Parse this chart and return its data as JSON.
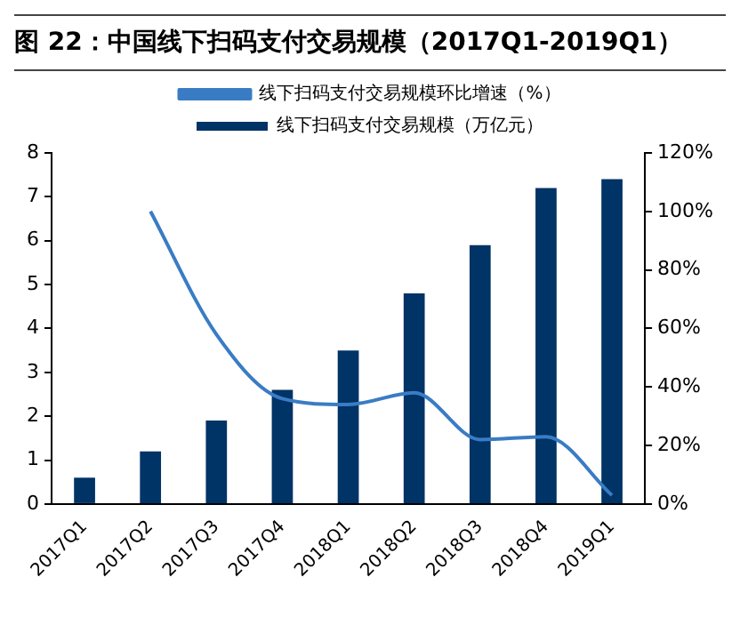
{
  "chart_data": {
    "type": "bar",
    "title": "图 22：中国线下扫码支付交易规模（2017Q1-2019Q1）",
    "categories": [
      "2017Q1",
      "2017Q2",
      "2017Q3",
      "2017Q4",
      "2018Q1",
      "2018Q2",
      "2018Q3",
      "2018Q4",
      "2019Q1"
    ],
    "series": [
      {
        "name": "线下扫码支付交易规模（万亿元）",
        "color": "#003366",
        "values": [
          0.6,
          1.2,
          1.9,
          2.6,
          3.5,
          4.8,
          5.9,
          7.2,
          7.4
        ]
      },
      {
        "name": "线下扫码支付交易规模环比增速（%）",
        "type": "line",
        "axis": "y2",
        "color": "#3a7cc4",
        "marker": "none",
        "values": [
          null,
          100,
          58,
          36,
          34,
          38,
          22,
          23,
          3
        ]
      }
    ],
    "ylim": [
      0,
      8
    ],
    "yticks": [
      0,
      1,
      2,
      3,
      4,
      5,
      6,
      7,
      8
    ],
    "y2lim": [
      0,
      120
    ],
    "y2ticks": [
      {
        "value": 0,
        "label": "0%"
      },
      {
        "value": 20,
        "label": "20%"
      },
      {
        "value": 40,
        "label": "40%"
      },
      {
        "value": 60,
        "label": "60%"
      },
      {
        "value": 80,
        "label": "80%"
      },
      {
        "value": 100,
        "label": "100%"
      },
      {
        "value": 120,
        "label": "120%"
      }
    ],
    "grid": false,
    "legend": "top"
  }
}
